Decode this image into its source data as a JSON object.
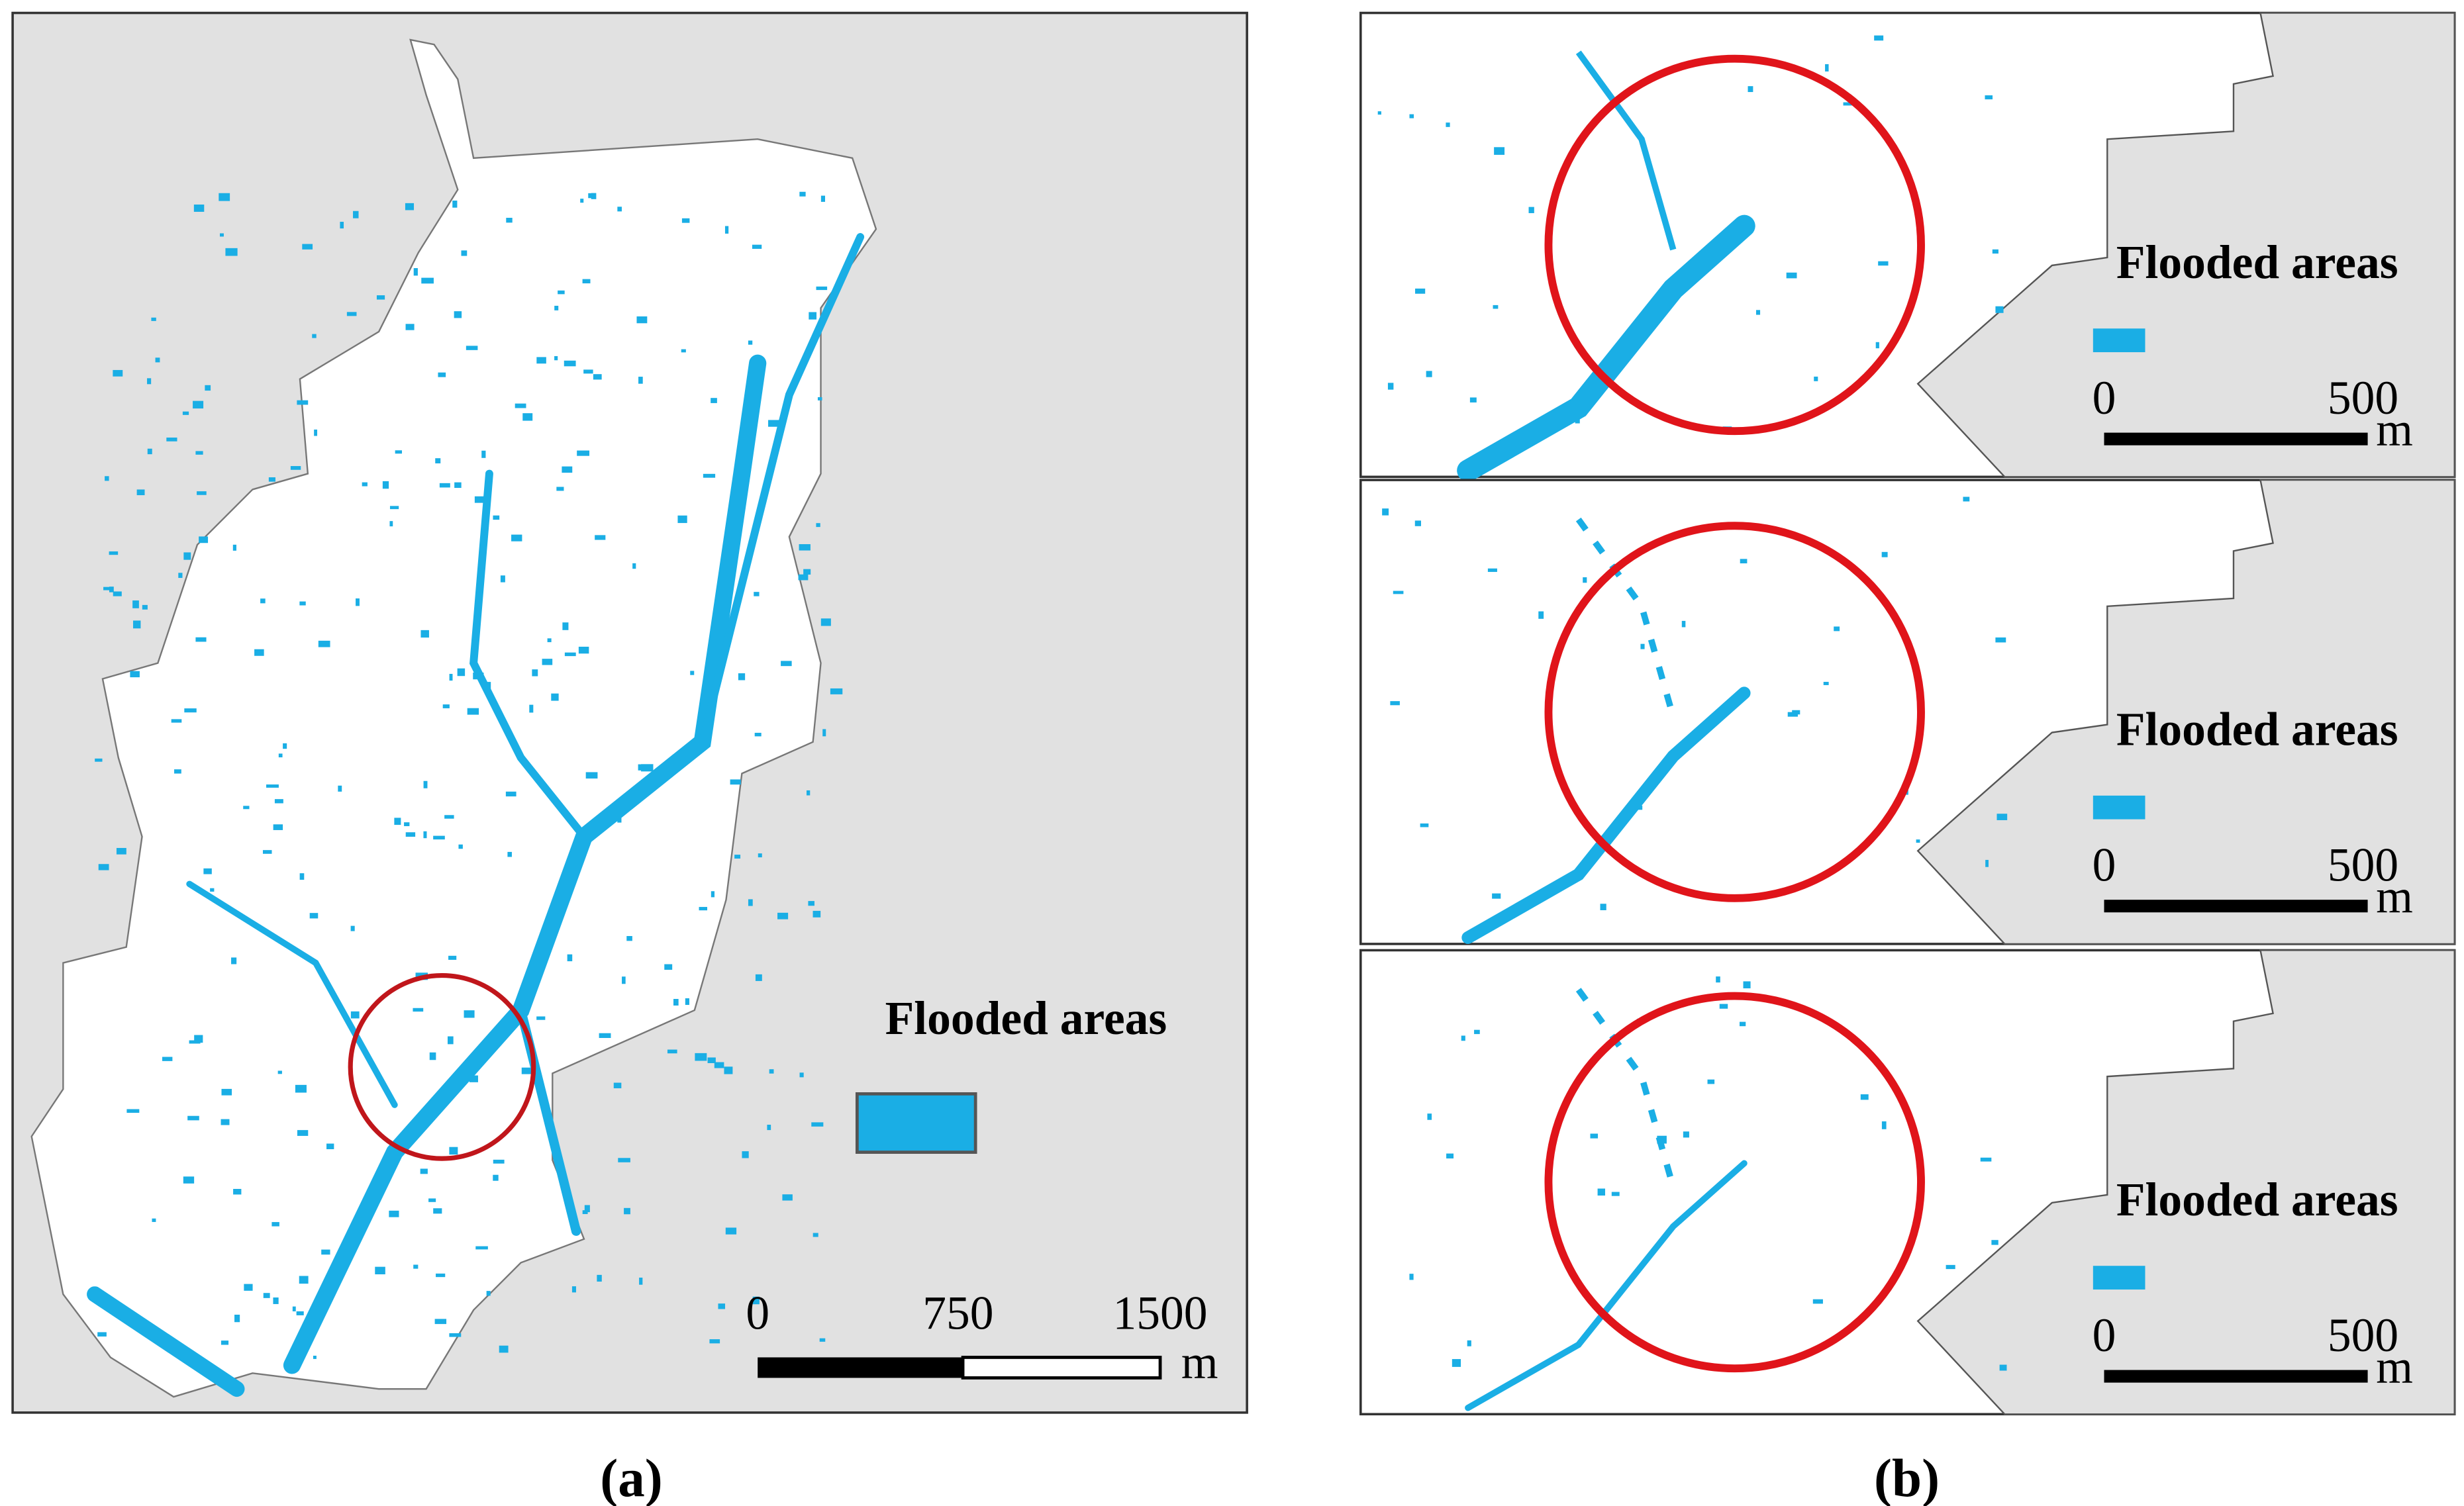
{
  "panels": {
    "a": {
      "legend": "Flooded areas",
      "scale": [
        "0",
        "750",
        "1500"
      ],
      "unit": "m",
      "caption": "(a)"
    },
    "b": {
      "insets": [
        {
          "legend": "Flooded areas",
          "scale": [
            "0",
            "500"
          ],
          "unit": "m"
        },
        {
          "legend": "Flooded areas",
          "scale": [
            "0",
            "500"
          ],
          "unit": "m"
        },
        {
          "legend": "Flooded areas",
          "scale": [
            "0",
            "500"
          ],
          "unit": "m"
        }
      ],
      "caption": "(b)"
    }
  }
}
